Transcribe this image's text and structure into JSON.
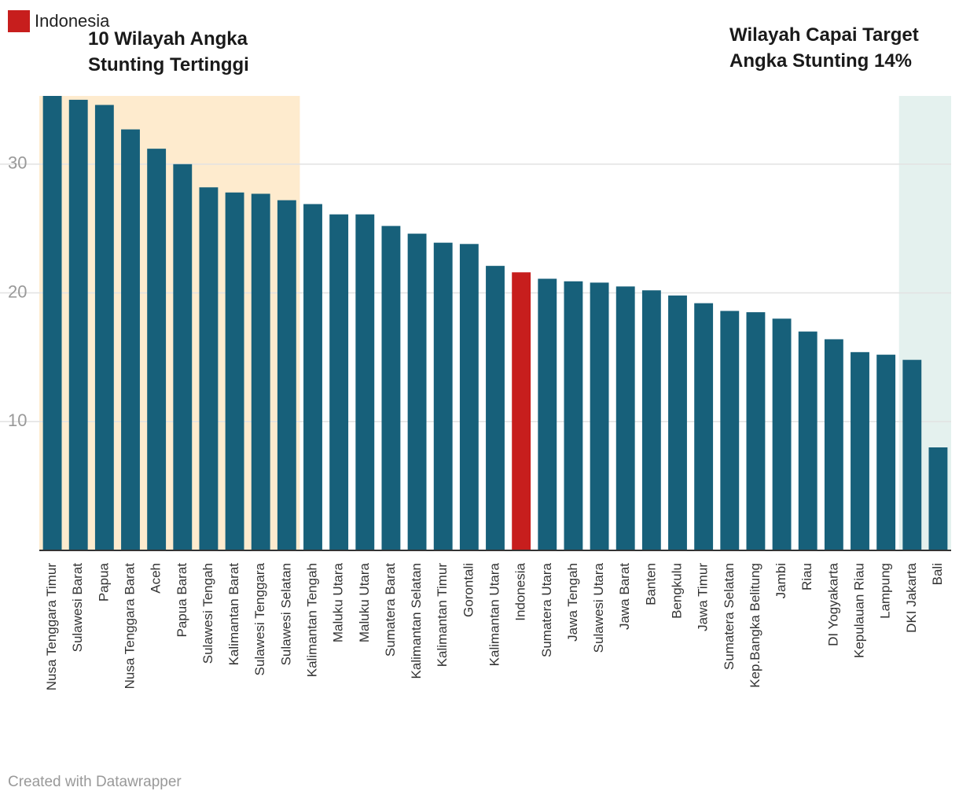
{
  "legend": {
    "label": "Indonesia",
    "color": "#c71e1d"
  },
  "annotations": {
    "left": "10 Wilayah Angka Stunting Tertinggi",
    "right": "Wilayah Capai Target Angka Stunting 14%"
  },
  "footer": "Created with Datawrapper",
  "colors": {
    "bar": "#17607a",
    "highlight": "#c71e1d",
    "band_left": "#feebce",
    "band_right": "#e4f1ee"
  },
  "chart_data": {
    "type": "bar",
    "categories": [
      "Nusa Tenggara Timur",
      "Sulawesi Barat",
      "Papua",
      "Nusa Tenggara Barat",
      "Aceh",
      "Papua Barat",
      "Sulawesi Tengah",
      "Kalimantan Barat",
      "Sulawesi Tenggara",
      "Sulawesi Selatan",
      "Kalimantan Tengah",
      "Maluku Utara",
      "Maluku Utara",
      "Sumatera Barat",
      "Kalimantan Selatan",
      "Kalimantan Timur",
      "Gorontali",
      "Kalimantan Utara",
      "Indonesia",
      "Sumatera Utara",
      "Jawa Tengah",
      "Sulawesi Utara",
      "Jawa Barat",
      "Banten",
      "Bengkulu",
      "Jawa Timur",
      "Sumatera Selatan",
      "Kep.Bangka Belitung",
      "Jambi",
      "Riau",
      "DI Yogyakarta",
      "Kepulauan Riau",
      "Lampung",
      "DKI Jakarta",
      "Bali"
    ],
    "values": [
      35.3,
      35.0,
      34.6,
      32.7,
      31.2,
      30.0,
      28.2,
      27.8,
      27.7,
      27.2,
      26.9,
      26.1,
      26.1,
      25.2,
      24.6,
      23.9,
      23.8,
      22.1,
      21.6,
      21.1,
      20.9,
      20.8,
      20.5,
      20.2,
      19.8,
      19.2,
      18.6,
      18.5,
      18.0,
      17.0,
      16.4,
      15.4,
      15.2,
      14.8,
      8.0
    ],
    "highlight": "Indonesia",
    "ylim": [
      0,
      35.3
    ],
    "yticks": [
      10,
      20,
      30
    ],
    "grid": true,
    "shaded_regions": [
      {
        "from": "Nusa Tenggara Timur",
        "to": "Sulawesi Selatan"
      },
      {
        "from": "DKI Jakarta",
        "to": "Bali"
      }
    ]
  }
}
